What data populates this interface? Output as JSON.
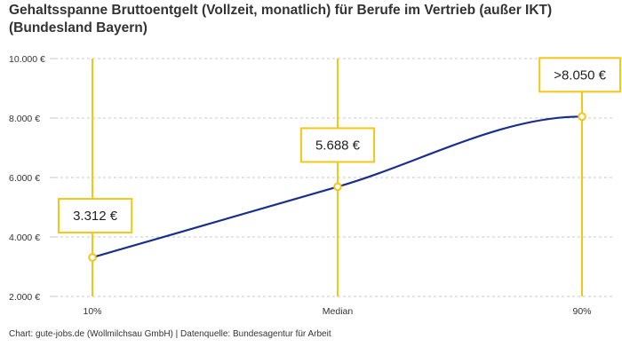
{
  "title": "Gehaltsspanne Bruttoentgelt (Vollzeit, monatlich) für Berufe im Vertrieb (außer IKT) (Bundesland Bayern)",
  "footer": "Chart: gute-jobs.de (Wollmilchsau GmbH) | Datenquelle: Bundesagentur für Arbeit",
  "colors": {
    "line": "#1a2f8c",
    "accent": "#f5c518",
    "grid": "#c8c8c8"
  },
  "chart_data": {
    "type": "line",
    "title": "Gehaltsspanne Bruttoentgelt (Vollzeit, monatlich) für Berufe im Vertrieb (außer IKT) (Bundesland Bayern)",
    "xlabel": "",
    "ylabel": "",
    "categories": [
      "10%",
      "Median",
      "90%"
    ],
    "values": [
      3312,
      5688,
      8050
    ],
    "data_labels": [
      "3.312 €",
      "5.688 €",
      ">8.050 €"
    ],
    "ylim": [
      2000,
      10000
    ],
    "yticks": [
      2000,
      4000,
      6000,
      8000,
      10000
    ],
    "ytick_labels": [
      "2.000 €",
      "4.000 €",
      "6.000 €",
      "8.000 €",
      "10.000 €"
    ],
    "grid": true,
    "legend": "none"
  }
}
